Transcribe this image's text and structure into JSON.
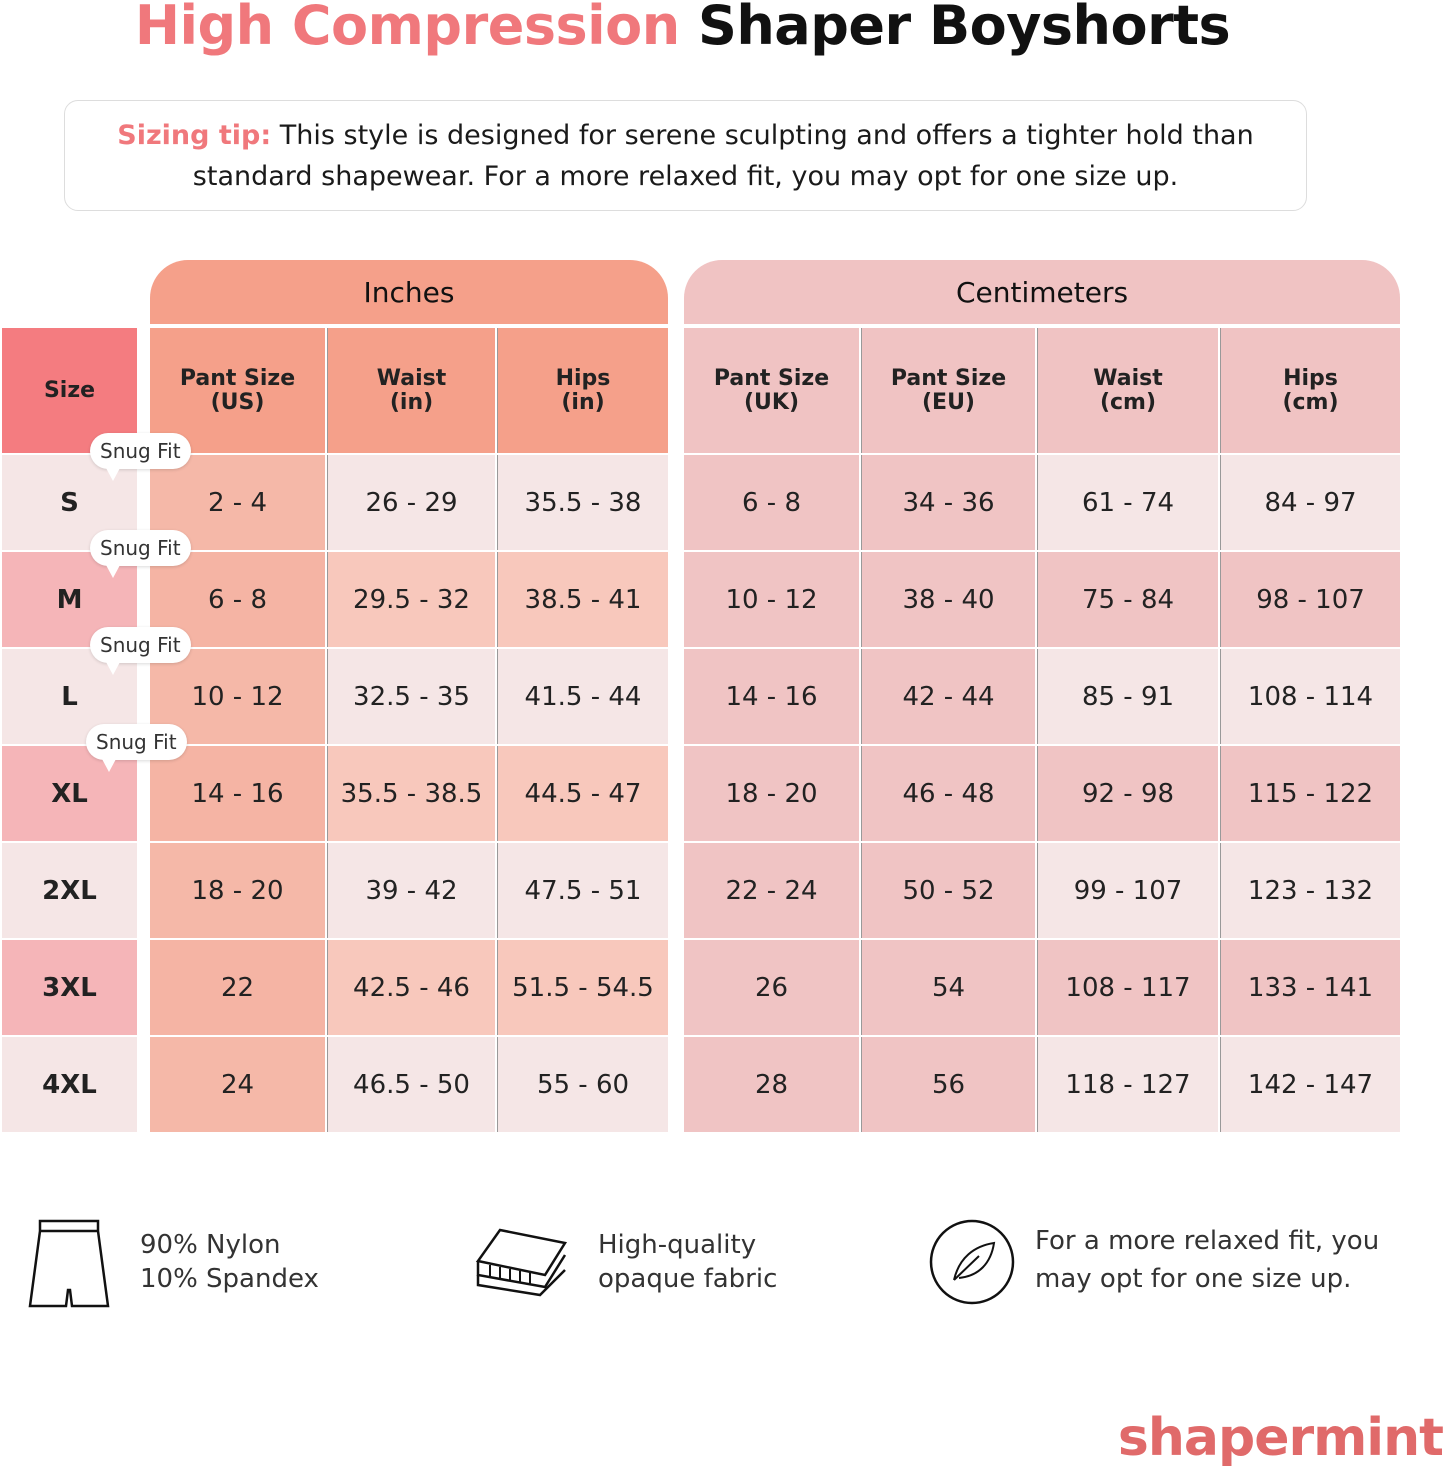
{
  "title": {
    "accent": "High Compression",
    "rest": "Shaper Boyshorts"
  },
  "tip": {
    "label": "Sizing tip:",
    "text": "This style is designed for serene sculpting and offers a tighter hold than standard shapewear. For a more relaxed fit, you may opt for one size up."
  },
  "groups": {
    "inches": "Inches",
    "cm": "Centimeters"
  },
  "headers": {
    "size": "Size",
    "cols": [
      [
        "Pant Size",
        "(US)"
      ],
      [
        "Waist",
        "(in)"
      ],
      [
        "Hips",
        "(in)"
      ],
      [
        "Pant Size",
        "(UK)"
      ],
      [
        "Pant Size",
        "(EU)"
      ],
      [
        "Waist",
        "(cm)"
      ],
      [
        "Hips",
        "(cm)"
      ]
    ]
  },
  "snug_label": "Snug Fit",
  "rows": [
    {
      "size": "S",
      "snug": true,
      "vals": [
        "2 - 4",
        "26 - 29",
        "35.5 - 38",
        "6 - 8",
        "34 - 36",
        "61 - 74",
        "84 - 97"
      ]
    },
    {
      "size": "M",
      "snug": true,
      "vals": [
        "6 - 8",
        "29.5 - 32",
        "38.5 - 41",
        "10 - 12",
        "38 - 40",
        "75 - 84",
        "98 - 107"
      ]
    },
    {
      "size": "L",
      "snug": true,
      "vals": [
        "10 - 12",
        "32.5 - 35",
        "41.5 - 44",
        "14 - 16",
        "42 - 44",
        "85 - 91",
        "108 - 114"
      ]
    },
    {
      "size": "XL",
      "snug": true,
      "vals": [
        "14 - 16",
        "35.5 - 38.5",
        "44.5 - 47",
        "18 - 20",
        "46 - 48",
        "92 - 98",
        "115 - 122"
      ]
    },
    {
      "size": "2XL",
      "snug": false,
      "vals": [
        "18 - 20",
        "39 - 42",
        "47.5 - 51",
        "22 - 24",
        "50 - 52",
        "99 - 107",
        "123 - 132"
      ]
    },
    {
      "size": "3XL",
      "snug": false,
      "vals": [
        "22",
        "42.5 - 46",
        "51.5 - 54.5",
        "26",
        "54",
        "108 - 117",
        "133 - 141"
      ]
    },
    {
      "size": "4XL",
      "snug": false,
      "vals": [
        "24",
        "46.5 - 50",
        "55 - 60",
        "28",
        "56",
        "118 - 127",
        "142 - 147"
      ]
    }
  ],
  "features": [
    {
      "icon": "shorts-icon",
      "lines": [
        "90% Nylon",
        "10% Spandex"
      ]
    },
    {
      "icon": "fabric-layers-icon",
      "lines": [
        "High-quality",
        "opaque fabric"
      ]
    },
    {
      "icon": "feather-icon",
      "lines": [
        "For a more relaxed fit, you",
        "may opt for one size up."
      ]
    }
  ],
  "logo": "shapermint",
  "colors": {
    "accent": "#f0787c",
    "size_header": "#f47c80",
    "inches_header": "#f5a08a",
    "cm_header": "#f0c3c3"
  }
}
